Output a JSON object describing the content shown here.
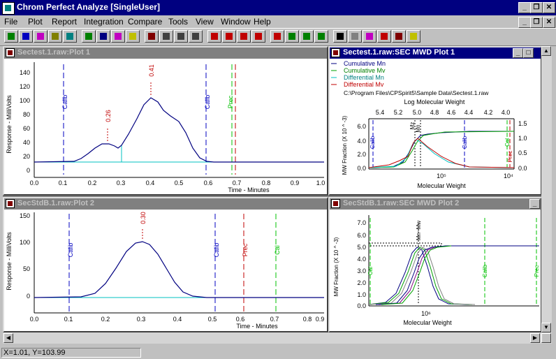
{
  "app": {
    "title": "Chrom Perfect Analyze [SingleUser]"
  },
  "menu": [
    "File",
    "Plot",
    "Report",
    "Integration",
    "Compare",
    "Tools",
    "View",
    "Window",
    "Help"
  ],
  "colors": {
    "trace": "#000080",
    "baseline": "#00c0c0",
    "peak_label": "#c00000",
    "calib": "#0000c0",
    "prec": "#c00000",
    "cal": "#00c000",
    "mz": "#000000"
  },
  "windows": {
    "plot1": {
      "title": "Sectest.1.raw:Plot 1",
      "ylabel": "Response - MilliVolts",
      "xlabel": "Time - Minutes",
      "yticks": [
        "140",
        "120",
        "100",
        "80",
        "60",
        "40",
        "20",
        "0"
      ],
      "xticks": [
        "0.0",
        "0.1",
        "0.2",
        "0.3",
        "0.4",
        "0.5",
        "0.6",
        "0.7",
        "0.8",
        "0.9",
        "1.0"
      ],
      "markers": {
        "calib1": "Calib",
        "calib2": "Calib",
        "prec": "Prec"
      },
      "peaks": [
        "0.26",
        "0.41"
      ]
    },
    "mwd1": {
      "title": "Sectest.1.raw:SEC MWD Plot 1",
      "legend": [
        "Cumulative Mn",
        "Cumulative Mv",
        "Differential Mn",
        "Differential Mv"
      ],
      "path": "C:\\Program Files\\CPSpirit5\\Sample Data\\Sectest.1.raw",
      "top_label": "Log Molecular Weight",
      "top_ticks": [
        "5.4",
        "5.2",
        "5.0",
        "4.8",
        "4.6",
        "4.4",
        "4.2",
        "4.0"
      ],
      "ylabel": "MW Fraction (X 10 ^ -3)",
      "yticks": [
        "6.0",
        "4.0",
        "2.0",
        "0.0"
      ],
      "y2ticks": [
        "1.5",
        "1.0",
        "0.5",
        "0.0"
      ],
      "xlabel": "Molecular Weight",
      "xticks": [
        "10⁵",
        "10⁴"
      ],
      "markers": {
        "calib": "Calib",
        "mz": "Mz",
        "mn": "Mn",
        "cal": "Cal",
        "prec": "Prec",
        "calib_left": "Calib"
      }
    },
    "plot2": {
      "title": "SecStdB.1.raw:Plot 2",
      "ylabel": "Response - MilliVolts",
      "xlabel": "Time - Minutes",
      "yticks": [
        "150",
        "100",
        "50",
        "0"
      ],
      "xticks": [
        "0.0",
        "0.1",
        "0.2",
        "0.3",
        "0.4",
        "0.5",
        "0.6",
        "0.7",
        "0.8",
        "0.9"
      ],
      "markers": {
        "calib1": "Calib",
        "calib2": "Calib",
        "prec": "Prec",
        "cal": "Cal"
      },
      "peaks": [
        "0.30"
      ]
    },
    "mwd2": {
      "title": "SecStdB.1.raw:SEC MWD Plot 2",
      "ylabel": "MW Fraction (X 10 ^ -3)",
      "yticks": [
        "7.0",
        "6.0",
        "5.0",
        "4.0",
        "3.0",
        "2.0",
        "1.0",
        "0.0"
      ],
      "xlabel": "Molecular Weight",
      "xticks": [
        "10⁶"
      ],
      "markers": {
        "mn_mw": "Mn~Mw",
        "calib": "Calib",
        "cal": "Cal",
        "prec": "Prec",
        "cal_left": "Cal"
      }
    }
  },
  "status": {
    "coords": "X=1.01, Y=103.99"
  }
}
